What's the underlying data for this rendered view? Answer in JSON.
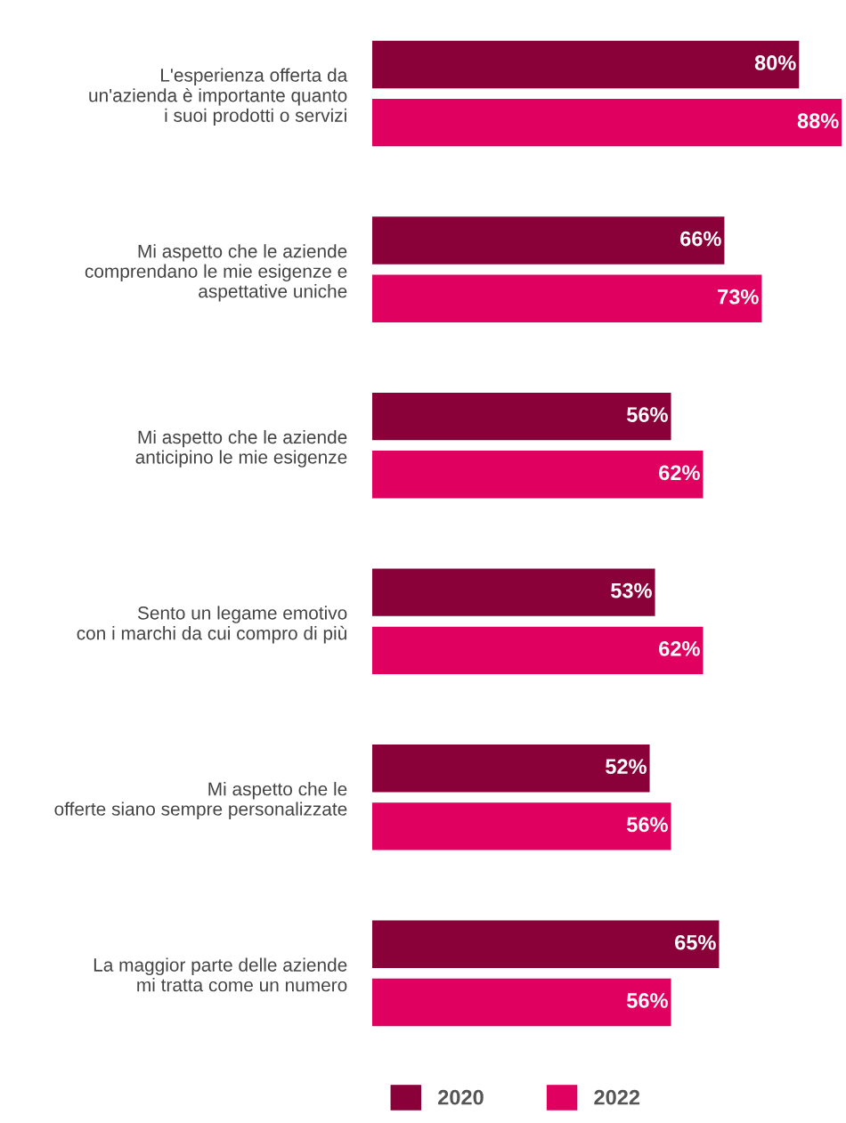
{
  "chart_data": {
    "type": "bar",
    "orientation": "horizontal",
    "tick_labels": "y",
    "grid": false,
    "legend": "bottom",
    "data_labels": true,
    "categories": [
      "L'esperienza offerta da\nun'azienda è importante quanto\ni suoi prodotti o servizi",
      "Mi aspetto che le aziende\ncomprendano le mie esigenze e\naspettative uniche",
      "Mi aspetto che le aziende\nanticipino le mie esigenze",
      "Sento un legame emotivo\ncon i marchi da cui compro di più",
      "Mi aspetto che le\nofferte siano sempre personalizzate",
      "La maggior parte delle aziende\nmi tratta come un numero"
    ],
    "series": [
      {
        "name": "2020",
        "color": "#8a0039",
        "values": [
          80,
          66,
          56,
          53,
          52,
          65
        ],
        "value_labels": [
          "80%",
          "66%",
          "56%",
          "53%",
          "52%",
          "65%"
        ]
      },
      {
        "name": "2022",
        "color": "#e0005f",
        "values": [
          88,
          73,
          62,
          62,
          56,
          56
        ],
        "value_labels": [
          "88%",
          "73%",
          "62%",
          "62%",
          "56%",
          "56%"
        ]
      }
    ]
  }
}
